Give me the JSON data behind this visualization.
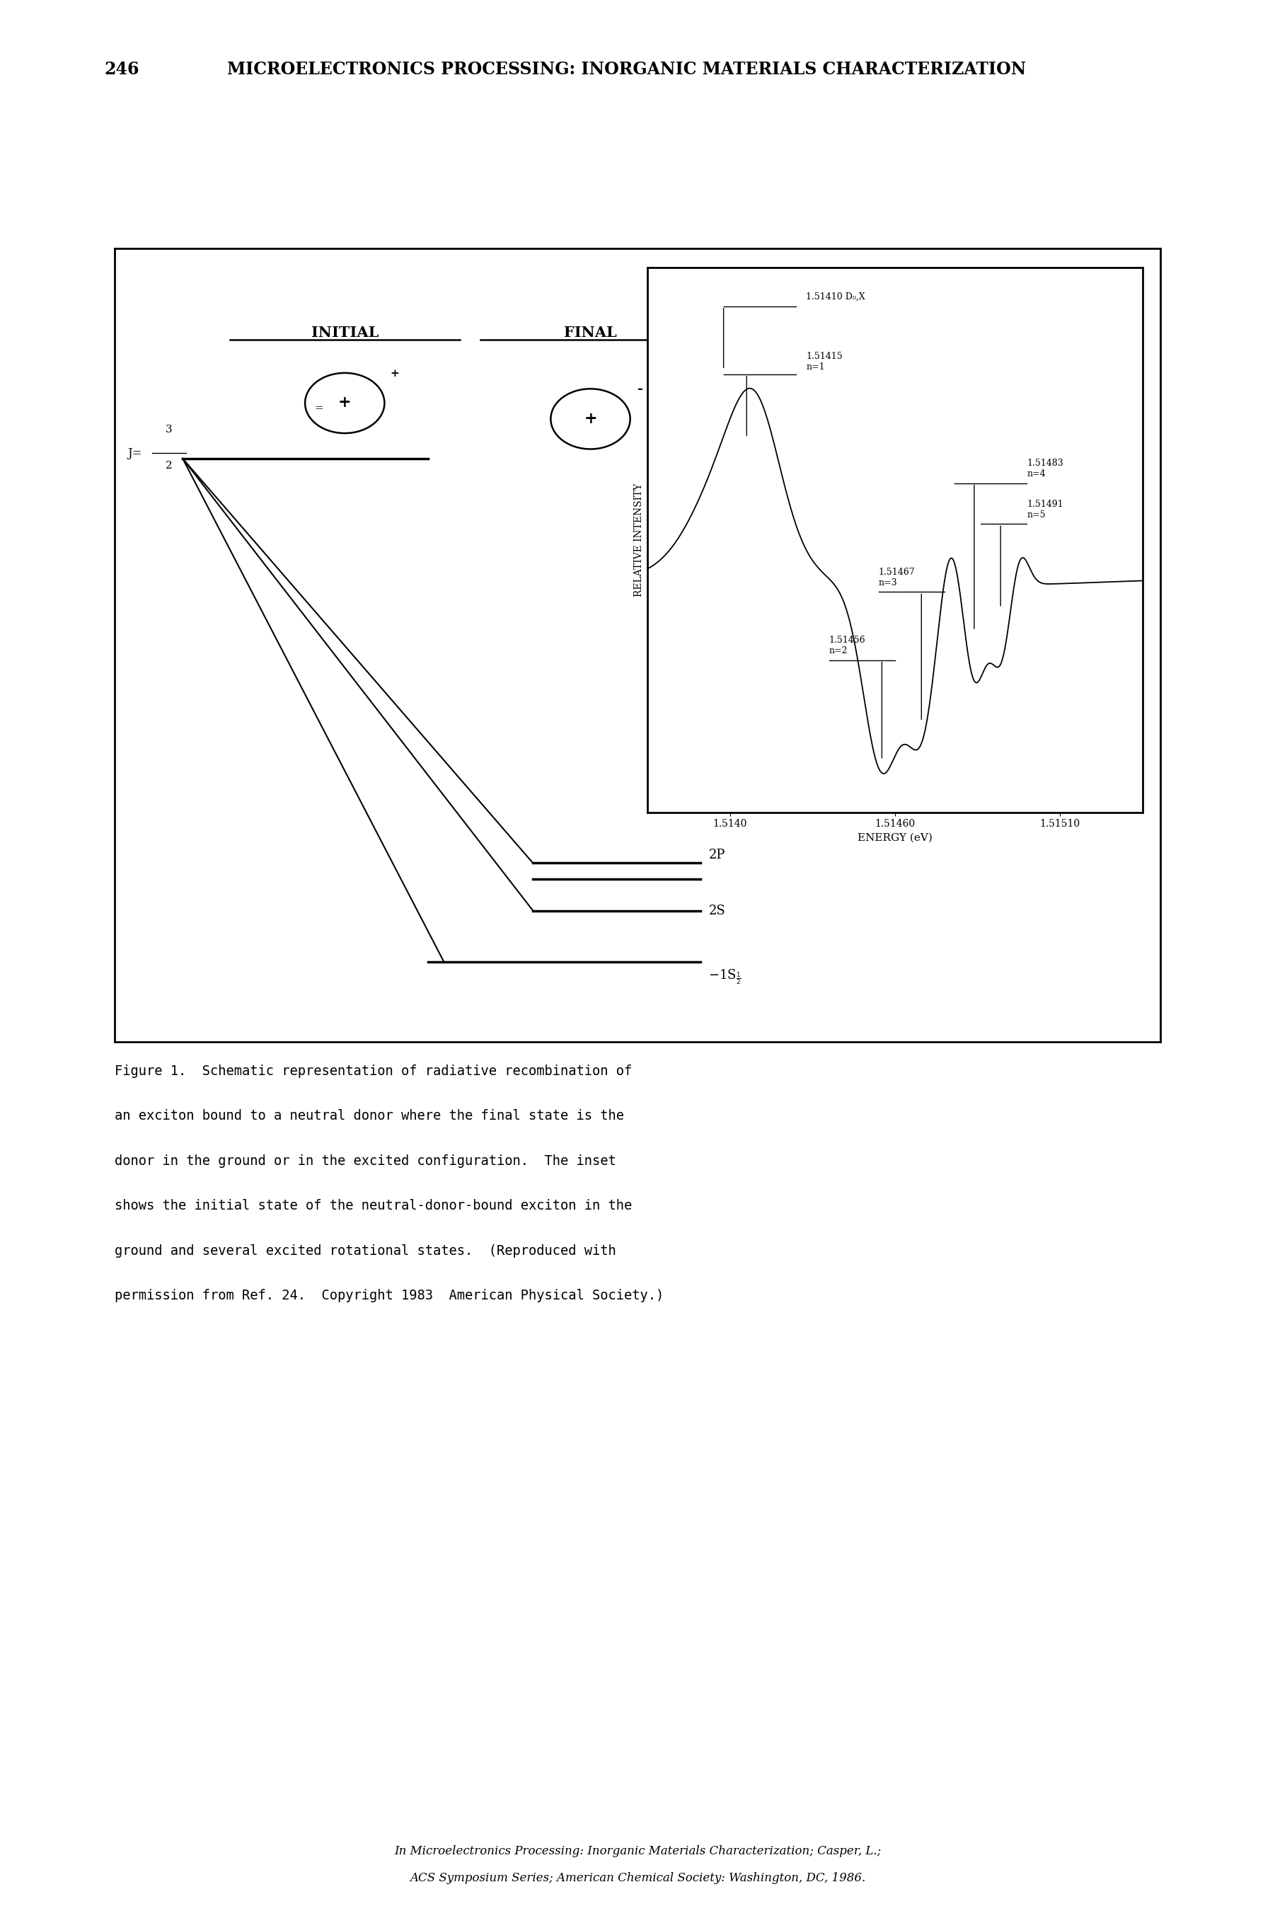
{
  "page_number": "246",
  "page_header": "MICROELECTRONICS PROCESSING: INORGANIC MATERIALS CHARACTERIZATION",
  "bg_color": "#ffffff",
  "figure_caption_line1": "Figure 1.  Schematic representation of radiative recombination of",
  "figure_caption_line2": "an exciton bound to a neutral donor where the final state is the",
  "figure_caption_line3": "donor in the ground or in the excited configuration.  The inset",
  "figure_caption_line4": "shows the initial state of the neutral-donor-bound exciton in the",
  "figure_caption_line5": "ground and several excited rotational states.  (Reproduced with",
  "figure_caption_line6": "permission from Ref. 24.  Copyright 1983  American Physical Society.)",
  "footer_line1": "In Microelectronics Processing: Inorganic Materials Characterization; Casper, L.;",
  "footer_line2": "ACS Symposium Series; American Chemical Society: Washington, DC, 1986.",
  "inset_xlabel": "ENERGY (eV)",
  "inset_ylabel": "RELATIVE INTENSITY",
  "inset_xtick_labels": [
    "1.5140",
    "1.51460",
    "1.51510"
  ],
  "inset_title": "1.51410 D₀,X",
  "inset_peaks": {
    "n1_label": "1.51415\nn=1",
    "n2_label": "1.51456\nn=2",
    "n3_label": "1.51467\nn=3",
    "n4_label": "1.51483\nn=4",
    "n5_label": "1.51491\nn=5"
  }
}
